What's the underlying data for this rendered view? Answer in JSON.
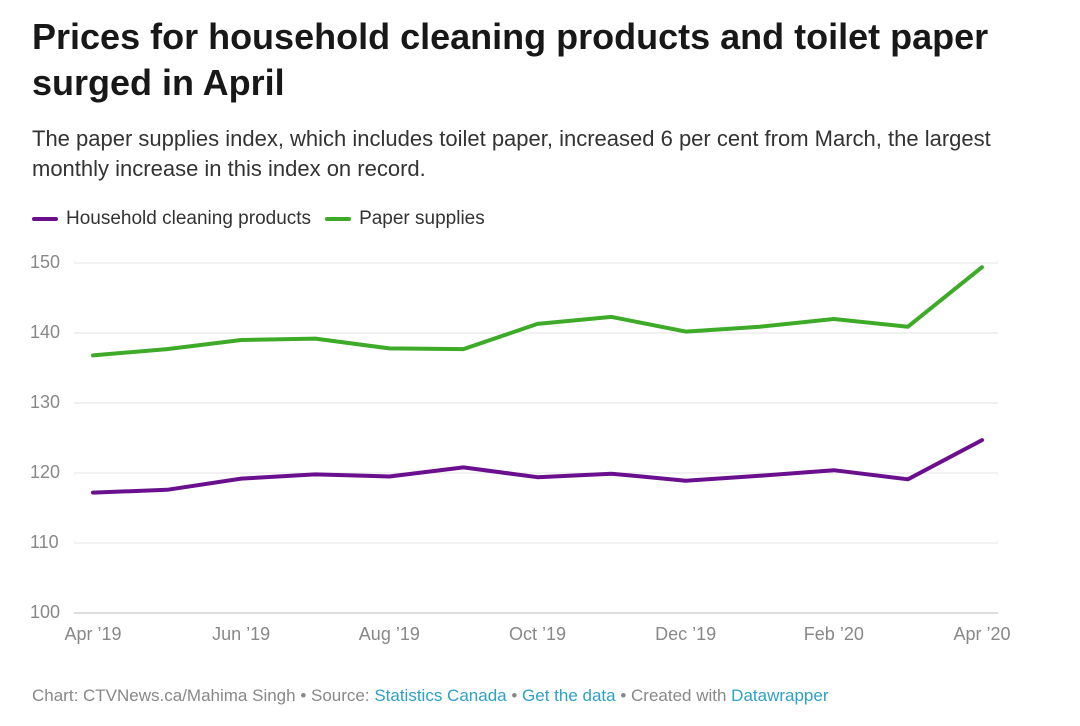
{
  "header": {
    "title": "Prices for household cleaning products and toilet paper surged in April",
    "subtitle": "The paper supplies index, which includes toilet paper, increased 6 per cent from March, the largest monthly increase in this index on record."
  },
  "legend": {
    "items": [
      {
        "label": "Household cleaning products",
        "color": "#6a0f8e"
      },
      {
        "label": "Paper supplies",
        "color": "#3daa28"
      }
    ]
  },
  "footer": {
    "chart_credit": "Chart: CTVNews.ca/Mahima Singh",
    "separator": " • ",
    "source_prefix": "Source: ",
    "source_link": "Statistics Canada",
    "get_data": "Get the data",
    "created_prefix": "Created with ",
    "created_link": "Datawrapper"
  },
  "chart_data": {
    "type": "line",
    "title": "Prices for household cleaning products and toilet paper surged in April",
    "xlabel": "",
    "ylabel": "",
    "ylim": [
      100,
      150
    ],
    "yticks": [
      100,
      110,
      120,
      130,
      140,
      150
    ],
    "grid": true,
    "legend_position": "top-left",
    "x": [
      "Apr 2019",
      "May 2019",
      "Jun 2019",
      "Jul 2019",
      "Aug 2019",
      "Sep 2019",
      "Oct 2019",
      "Nov 2019",
      "Dec 2019",
      "Jan 2020",
      "Feb 2020",
      "Mar 2020",
      "Apr 2020"
    ],
    "xtick_labels": [
      {
        "index": 0,
        "label": "Apr ’19"
      },
      {
        "index": 2,
        "label": "Jun ’19"
      },
      {
        "index": 4,
        "label": "Aug ’19"
      },
      {
        "index": 6,
        "label": "Oct ’19"
      },
      {
        "index": 8,
        "label": "Dec ’19"
      },
      {
        "index": 10,
        "label": "Feb ’20"
      },
      {
        "index": 12,
        "label": "Apr ’20"
      }
    ],
    "series": [
      {
        "name": "Household cleaning products",
        "color": "#6a0f8e",
        "values": [
          117.2,
          117.6,
          119.2,
          119.8,
          119.5,
          120.8,
          119.4,
          119.9,
          118.9,
          119.6,
          120.4,
          119.1,
          124.7
        ]
      },
      {
        "name": "Paper supplies",
        "color": "#3daa28",
        "values": [
          136.8,
          137.7,
          139.0,
          139.2,
          137.8,
          137.7,
          141.3,
          142.3,
          140.2,
          140.9,
          142.0,
          140.9,
          149.4
        ]
      }
    ]
  }
}
